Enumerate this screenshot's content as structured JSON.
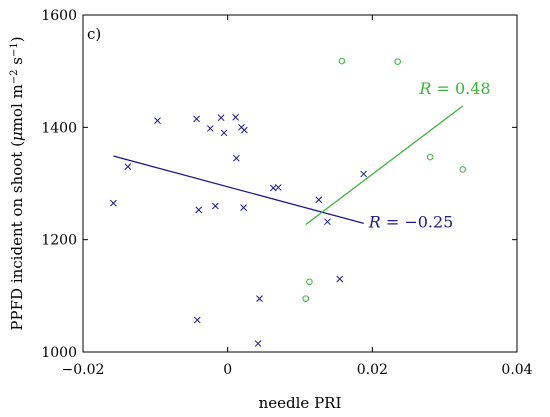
{
  "chart_data": {
    "type": "scatter",
    "panel_label": "c)",
    "xlabel": "needle PRI",
    "ylabel_parts": [
      "PPFD incident on shoot (",
      "μ",
      "mol m",
      "−2",
      " s",
      "−1",
      ")"
    ],
    "xlim": [
      -0.02,
      0.04
    ],
    "ylim": [
      1000,
      1600
    ],
    "xticks": [
      -0.02,
      0,
      0.02,
      0.04
    ],
    "xtick_labels": [
      "−0.02",
      "0",
      "0.02",
      "0.04"
    ],
    "yticks": [
      1000,
      1200,
      1400,
      1600
    ],
    "ytick_labels": [
      "1000",
      "1200",
      "1400",
      "1600"
    ],
    "grid": false,
    "series": [
      {
        "marker": "x",
        "color": "#1a1a8c",
        "points": [
          [
            -0.0158,
            1265
          ],
          [
            -0.0138,
            1330
          ],
          [
            -0.0097,
            1412
          ],
          [
            -0.0043,
            1415
          ],
          [
            -0.0024,
            1398
          ],
          [
            -0.0009,
            1417
          ],
          [
            -0.0005,
            1390
          ],
          [
            0.0011,
            1418
          ],
          [
            0.0019,
            1400
          ],
          [
            0.0023,
            1395
          ],
          [
            0.0012,
            1345
          ],
          [
            -0.004,
            1253
          ],
          [
            -0.0017,
            1260
          ],
          [
            0.0022,
            1257
          ],
          [
            0.0063,
            1292
          ],
          [
            0.007,
            1293
          ],
          [
            0.0126,
            1271
          ],
          [
            0.0138,
            1232
          ],
          [
            0.0188,
            1317
          ],
          [
            0.0155,
            1130
          ],
          [
            0.0044,
            1095
          ],
          [
            -0.0042,
            1057
          ],
          [
            0.0042,
            1015
          ]
        ],
        "fit": {
          "x": [
            -0.0158,
            0.0188
          ],
          "y": [
            1349,
            1229
          ]
        },
        "annotation": {
          "text_var": "R",
          "text_rest": " = −0.25",
          "x": 0.0195,
          "y": 1231
        }
      },
      {
        "marker": "o",
        "color": "#3cb43c",
        "points": [
          [
            0.0158,
            1518
          ],
          [
            0.0235,
            1517
          ],
          [
            0.028,
            1347
          ],
          [
            0.0325,
            1325
          ],
          [
            0.0113,
            1125
          ],
          [
            0.0108,
            1095
          ]
        ],
        "fit": {
          "x": [
            0.0108,
            0.0325
          ],
          "y": [
            1227,
            1438
          ]
        },
        "annotation": {
          "text_var": "R",
          "text_rest": " = 0.48",
          "x": 0.0265,
          "y": 1468
        }
      }
    ]
  }
}
